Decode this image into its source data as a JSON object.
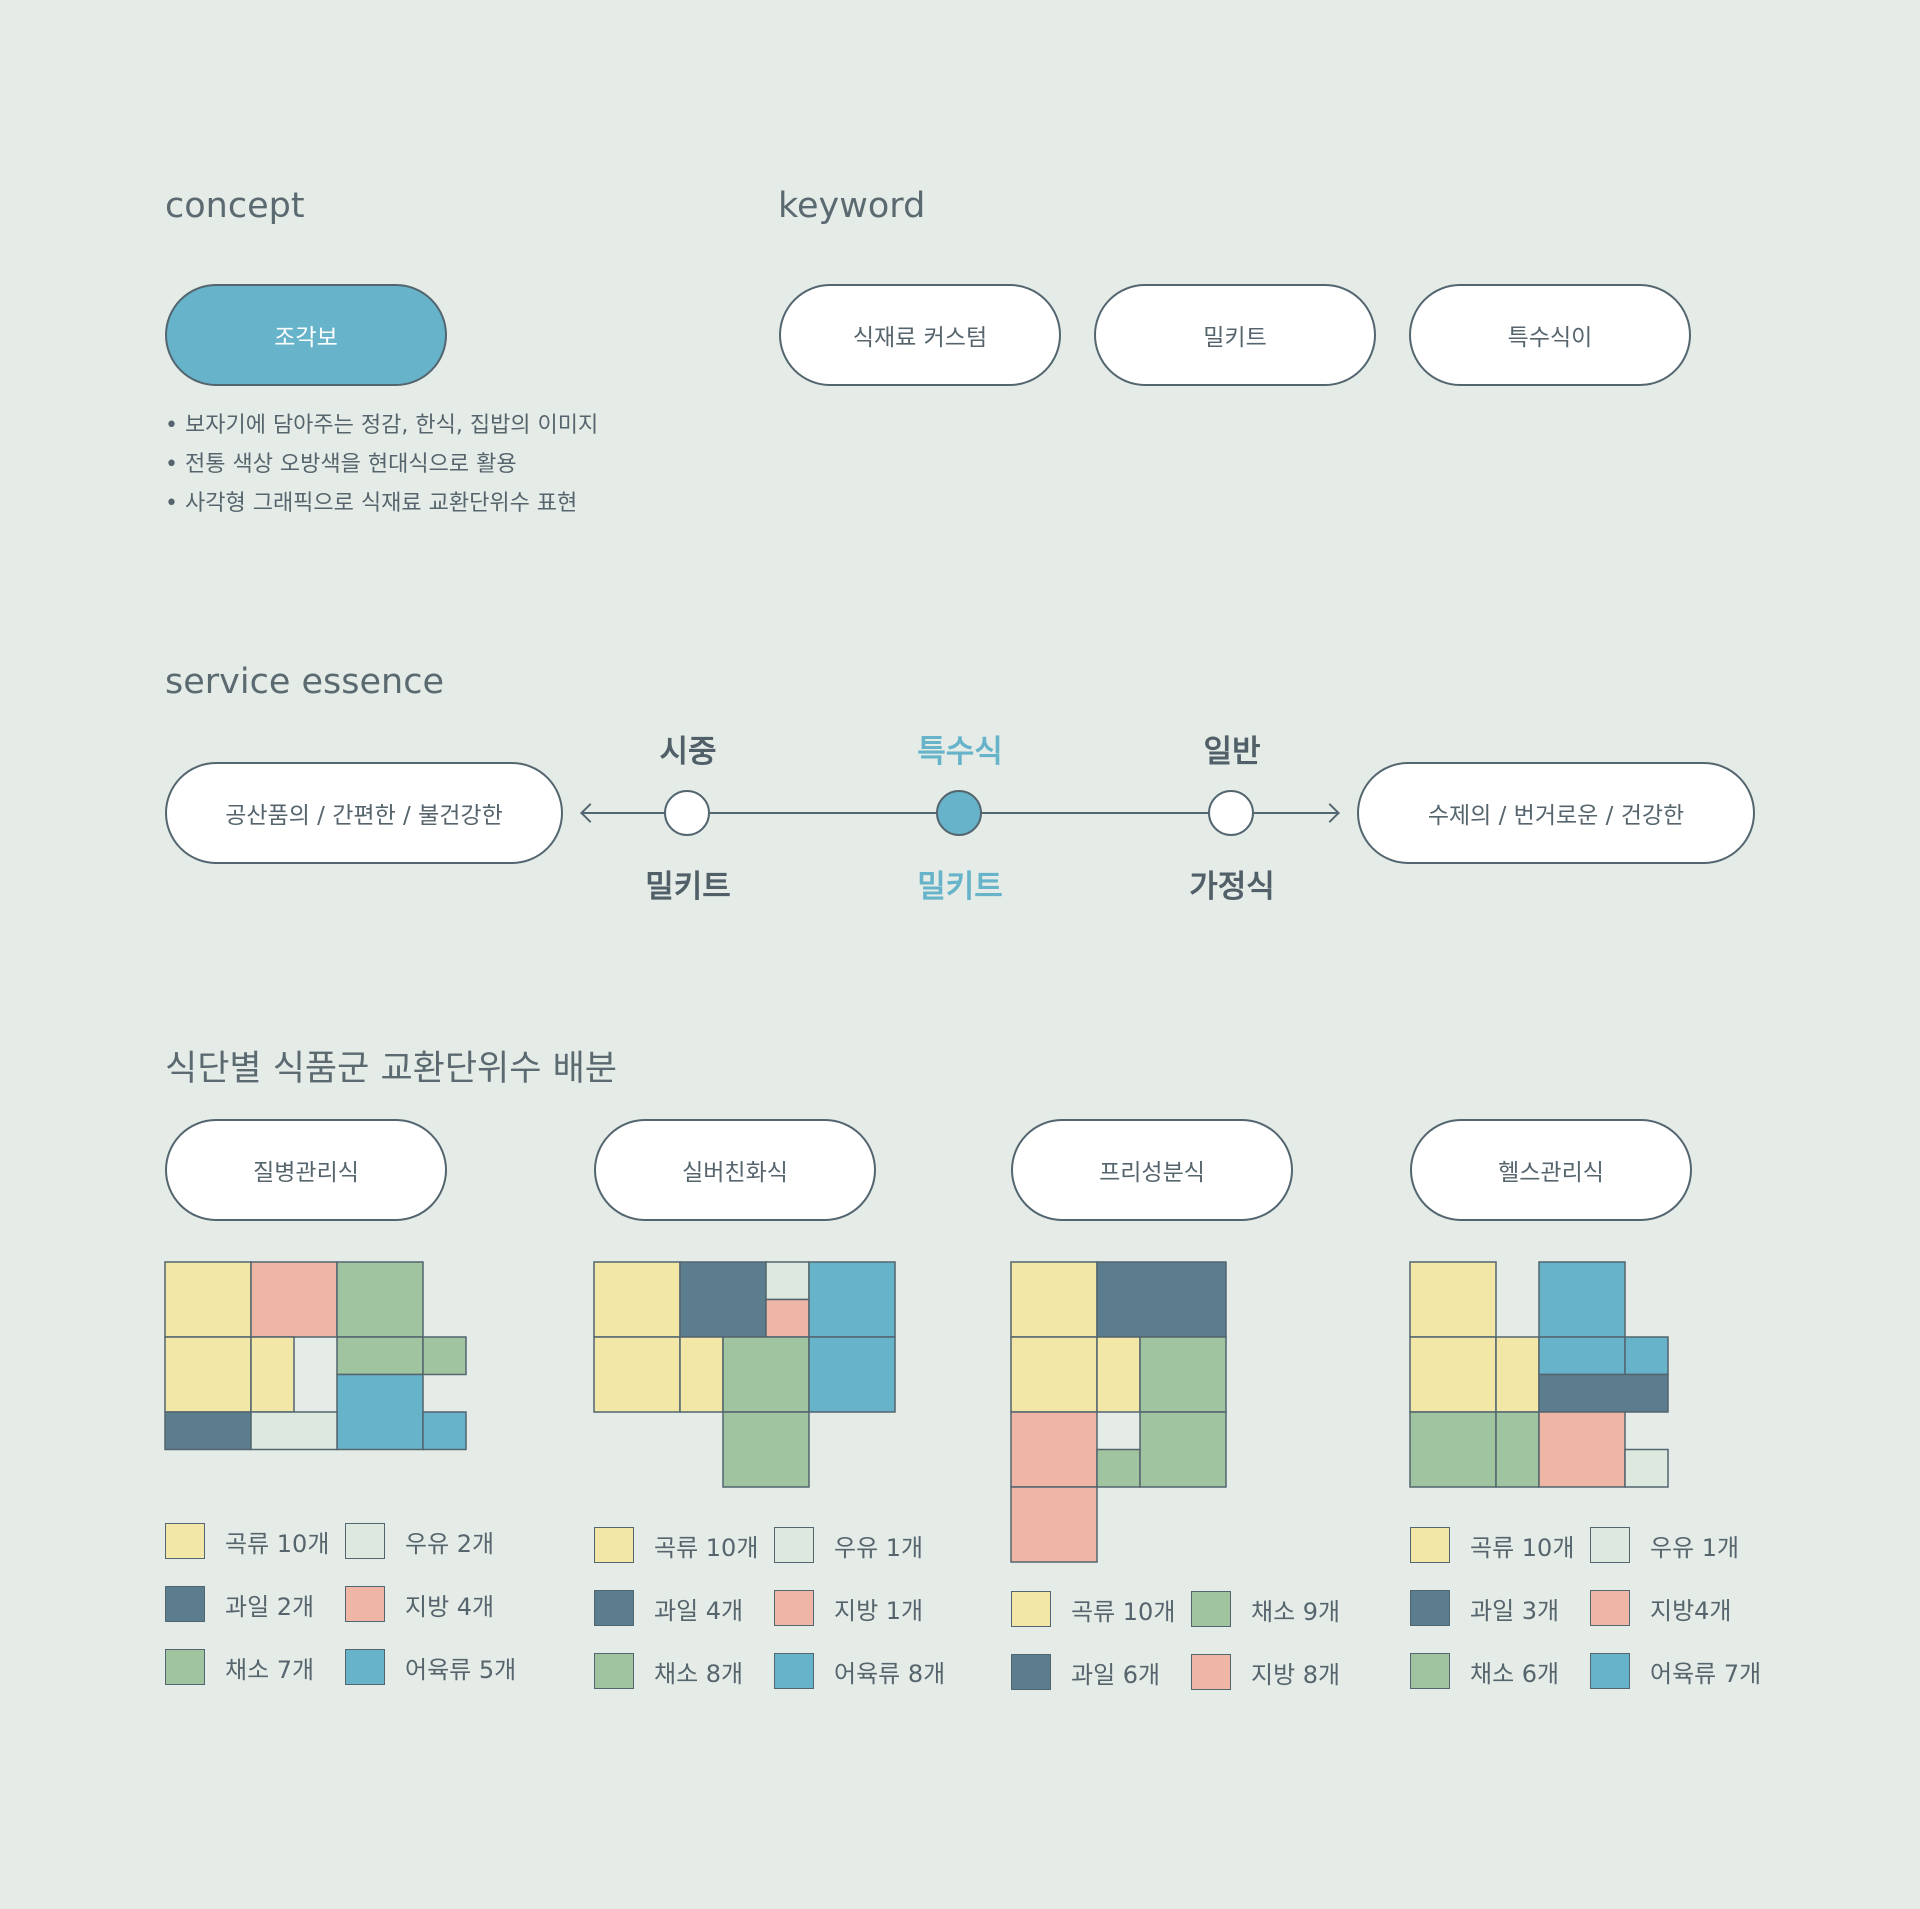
{
  "colors": {
    "grain": "#f2e7a6",
    "fruit": "#5c7d8d",
    "veg": "#9fc49f",
    "dairy": "#dde8de",
    "fat": "#efb6a6",
    "meat": "#67b3c9",
    "empty": "#e5ece7"
  },
  "concept": {
    "title": "concept",
    "pill": "조각보",
    "bullets": [
      "보자기에 담아주는 정감, 한식, 집밥의 이미지",
      "전통 색상 오방색을 현대식으로 활용",
      "사각형 그래픽으로 식재료 교환단위수 표현"
    ]
  },
  "keyword": {
    "title": "keyword",
    "items": [
      "식재료 커스텀",
      "밀키트",
      "특수식이"
    ]
  },
  "essence": {
    "title": "service essence",
    "left": "공산품의 / 간편한 / 불건강한",
    "right": "수제의 / 번거로운 / 건강한",
    "nodes": [
      {
        "top": "시중",
        "bottom": "밀키트",
        "highlight": false
      },
      {
        "top": "특수식",
        "bottom": "밀키트",
        "highlight": true
      },
      {
        "top": "일반",
        "bottom": "가정식",
        "highlight": false
      }
    ]
  },
  "distribution": {
    "title": "식단별 식품군 교환단위수 배분",
    "diets": [
      {
        "name": "질병관리식",
        "blocks": [
          {
            "c": "grain",
            "g": [
              0,
              0,
              1,
              1
            ]
          },
          {
            "c": "fat",
            "g": [
              1,
              0,
              1,
              1
            ]
          },
          {
            "c": "veg",
            "g": [
              2,
              0,
              1,
              1
            ]
          },
          {
            "c": "grain",
            "g": [
              0,
              1,
              1,
              1
            ]
          },
          {
            "c": "grain",
            "g": [
              1,
              1,
              0.5,
              1
            ]
          },
          {
            "c": "veg",
            "g": [
              2,
              1,
              1,
              0.5
            ]
          },
          {
            "c": "veg",
            "g": [
              3,
              1,
              0.5,
              0.5
            ]
          },
          {
            "c": "meat",
            "g": [
              2,
              1.5,
              1,
              1
            ]
          },
          {
            "c": "meat",
            "g": [
              3,
              2,
              0.5,
              0.5
            ]
          },
          {
            "c": "fruit",
            "g": [
              0,
              2,
              1,
              0.5
            ]
          },
          {
            "c": "dairy",
            "g": [
              1,
              2,
              1,
              0.5
            ]
          }
        ],
        "legend": [
          {
            "c": "grain",
            "label": "곡류 10개"
          },
          {
            "c": "dairy",
            "label": "우유 2개"
          },
          {
            "c": "fruit",
            "label": "과일 2개"
          },
          {
            "c": "fat",
            "label": "지방 4개"
          },
          {
            "c": "veg",
            "label": "채소 7개"
          },
          {
            "c": "meat",
            "label": "어육류 5개"
          }
        ]
      },
      {
        "name": "실버친화식",
        "blocks": [
          {
            "c": "grain",
            "g": [
              0,
              0,
              1,
              1
            ]
          },
          {
            "c": "fruit",
            "g": [
              1,
              0,
              1,
              1
            ]
          },
          {
            "c": "dairy",
            "g": [
              2,
              0,
              0.5,
              0.5
            ]
          },
          {
            "c": "fat",
            "g": [
              2,
              0.5,
              0.5,
              0.5
            ]
          },
          {
            "c": "meat",
            "g": [
              2.5,
              0,
              1,
              1
            ]
          },
          {
            "c": "grain",
            "g": [
              0,
              1,
              1,
              1
            ]
          },
          {
            "c": "grain",
            "g": [
              1,
              1,
              0.5,
              1
            ]
          },
          {
            "c": "veg",
            "g": [
              1.5,
              1,
              1,
              1
            ]
          },
          {
            "c": "meat",
            "g": [
              2.5,
              1,
              1,
              1
            ]
          },
          {
            "c": "veg",
            "g": [
              1.5,
              2,
              1,
              1
            ]
          }
        ],
        "legend": [
          {
            "c": "grain",
            "label": "곡류 10개"
          },
          {
            "c": "dairy",
            "label": "우유 1개"
          },
          {
            "c": "fruit",
            "label": "과일 4개"
          },
          {
            "c": "fat",
            "label": "지방 1개"
          },
          {
            "c": "veg",
            "label": "채소 8개"
          },
          {
            "c": "meat",
            "label": "어육류 8개"
          }
        ]
      },
      {
        "name": "프리성분식",
        "blocks": [
          {
            "c": "grain",
            "g": [
              0,
              0,
              1,
              1
            ]
          },
          {
            "c": "fruit",
            "g": [
              1,
              0,
              1.5,
              1
            ]
          },
          {
            "c": "grain",
            "g": [
              0,
              1,
              1,
              1
            ]
          },
          {
            "c": "grain",
            "g": [
              1,
              1,
              0.5,
              1
            ]
          },
          {
            "c": "veg",
            "g": [
              1.5,
              1,
              1,
              1
            ]
          },
          {
            "c": "fat",
            "g": [
              0,
              2,
              1,
              1
            ]
          },
          {
            "c": "veg",
            "g": [
              1,
              2.5,
              0.5,
              0.5
            ]
          },
          {
            "c": "veg",
            "g": [
              1.5,
              2,
              1,
              1
            ]
          },
          {
            "c": "fat",
            "g": [
              0,
              3,
              1,
              1
            ]
          }
        ],
        "legend": [
          {
            "c": "grain",
            "label": "곡류 10개"
          },
          {
            "c": "veg",
            "label": "채소 9개"
          },
          {
            "c": "fruit",
            "label": "과일 6개"
          },
          {
            "c": "fat",
            "label": "지방 8개"
          }
        ]
      },
      {
        "name": "헬스관리식",
        "blocks": [
          {
            "c": "grain",
            "g": [
              0,
              0,
              1,
              1
            ]
          },
          {
            "c": "meat",
            "g": [
              1.5,
              0,
              1,
              1
            ]
          },
          {
            "c": "grain",
            "g": [
              0,
              1,
              1,
              1
            ]
          },
          {
            "c": "grain",
            "g": [
              1,
              1,
              0.5,
              1
            ]
          },
          {
            "c": "meat",
            "g": [
              1.5,
              1,
              1,
              0.5
            ]
          },
          {
            "c": "meat",
            "g": [
              2.5,
              1,
              0.5,
              0.5
            ]
          },
          {
            "c": "fruit",
            "g": [
              1.5,
              1.5,
              1.5,
              0.5
            ]
          },
          {
            "c": "veg",
            "g": [
              0,
              2,
              1,
              1
            ]
          },
          {
            "c": "veg",
            "g": [
              1,
              2,
              0.5,
              1
            ]
          },
          {
            "c": "fat",
            "g": [
              1.5,
              2,
              1,
              1
            ]
          },
          {
            "c": "dairy",
            "g": [
              2.5,
              2.5,
              0.5,
              0.5
            ]
          }
        ],
        "legend": [
          {
            "c": "grain",
            "label": "곡류 10개"
          },
          {
            "c": "dairy",
            "label": "우유 1개"
          },
          {
            "c": "fruit",
            "label": "과일 3개"
          },
          {
            "c": "fat",
            "label": "지방4개"
          },
          {
            "c": "veg",
            "label": "채소 6개"
          },
          {
            "c": "meat",
            "label": "어육류 7개"
          }
        ]
      }
    ]
  }
}
